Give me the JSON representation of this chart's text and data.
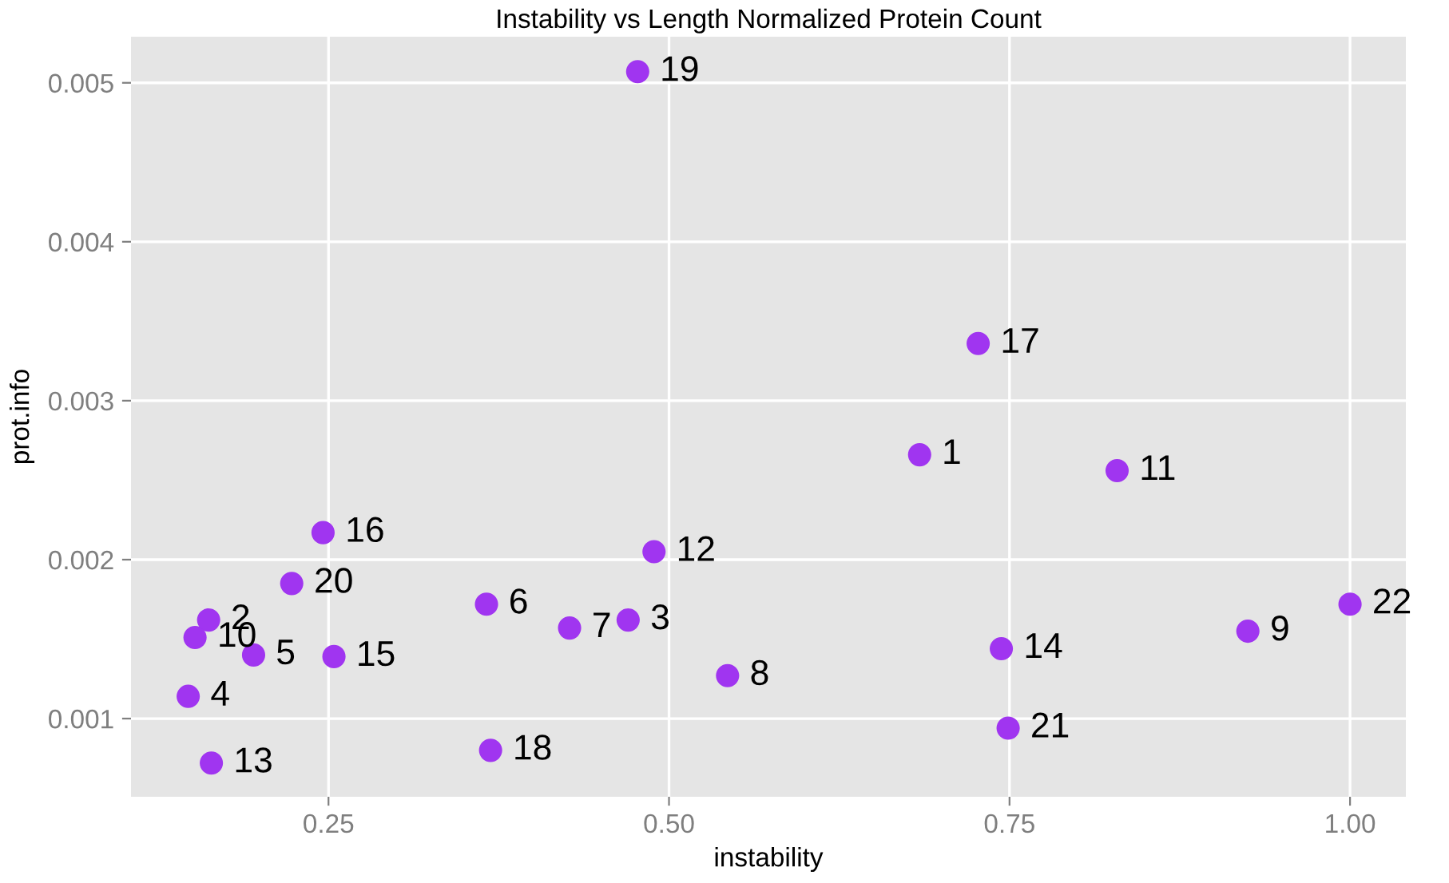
{
  "chart_data": {
    "type": "scatter",
    "title": "Instability vs Length Normalized Protein Count",
    "xlabel": "instability",
    "ylabel": "prot.info",
    "x": [
      0.684,
      0.162,
      0.47,
      0.147,
      0.195,
      0.366,
      0.427,
      0.543,
      0.925,
      0.152,
      0.829,
      0.489,
      0.164,
      0.744,
      0.254,
      0.246,
      0.727,
      0.369,
      0.477,
      0.223,
      0.749,
      1.0
    ],
    "series": [
      {
        "color": "#a035f0",
        "values": [
          0.00266,
          0.00162,
          0.00162,
          0.00114,
          0.0014,
          0.00172,
          0.00157,
          0.00127,
          0.00155,
          0.00151,
          0.00256,
          0.00205,
          0.00072,
          0.00144,
          0.00139,
          0.00217,
          0.00336,
          0.0008,
          0.00507,
          0.00185,
          0.00094,
          0.00172
        ]
      }
    ],
    "annotations": [
      {
        "text": "1",
        "x": 0.684,
        "y": 0.00266
      },
      {
        "text": "2",
        "x": 0.162,
        "y": 0.00162
      },
      {
        "text": "3",
        "x": 0.47,
        "y": 0.00162
      },
      {
        "text": "4",
        "x": 0.147,
        "y": 0.00114
      },
      {
        "text": "5",
        "x": 0.195,
        "y": 0.0014
      },
      {
        "text": "6",
        "x": 0.366,
        "y": 0.00172
      },
      {
        "text": "7",
        "x": 0.427,
        "y": 0.00157
      },
      {
        "text": "8",
        "x": 0.543,
        "y": 0.00127
      },
      {
        "text": "9",
        "x": 0.925,
        "y": 0.00155
      },
      {
        "text": "10",
        "x": 0.152,
        "y": 0.00151
      },
      {
        "text": "11",
        "x": 0.829,
        "y": 0.00256
      },
      {
        "text": "12",
        "x": 0.489,
        "y": 0.00205
      },
      {
        "text": "13",
        "x": 0.164,
        "y": 0.00072
      },
      {
        "text": "14",
        "x": 0.744,
        "y": 0.00144
      },
      {
        "text": "15",
        "x": 0.254,
        "y": 0.00139
      },
      {
        "text": "16",
        "x": 0.246,
        "y": 0.00217
      },
      {
        "text": "17",
        "x": 0.727,
        "y": 0.00336
      },
      {
        "text": "18",
        "x": 0.369,
        "y": 0.0008
      },
      {
        "text": "19",
        "x": 0.477,
        "y": 0.00507
      },
      {
        "text": "20",
        "x": 0.223,
        "y": 0.00185
      },
      {
        "text": "21",
        "x": 0.749,
        "y": 0.00094
      },
      {
        "text": "22",
        "x": 1.0,
        "y": 0.00172
      }
    ],
    "xlim": [
      0.105,
      1.041
    ],
    "ylim": [
      0.000508,
      0.00529
    ],
    "xticks": [
      {
        "value": 0.25,
        "label": "0.25"
      },
      {
        "value": 0.5,
        "label": "0.50"
      },
      {
        "value": 0.75,
        "label": "0.75"
      },
      {
        "value": 1.0,
        "label": "1.00"
      }
    ],
    "yticks": [
      0.001,
      0.002,
      0.003,
      0.004,
      0.005
    ],
    "grid": true,
    "marker": "circle"
  }
}
